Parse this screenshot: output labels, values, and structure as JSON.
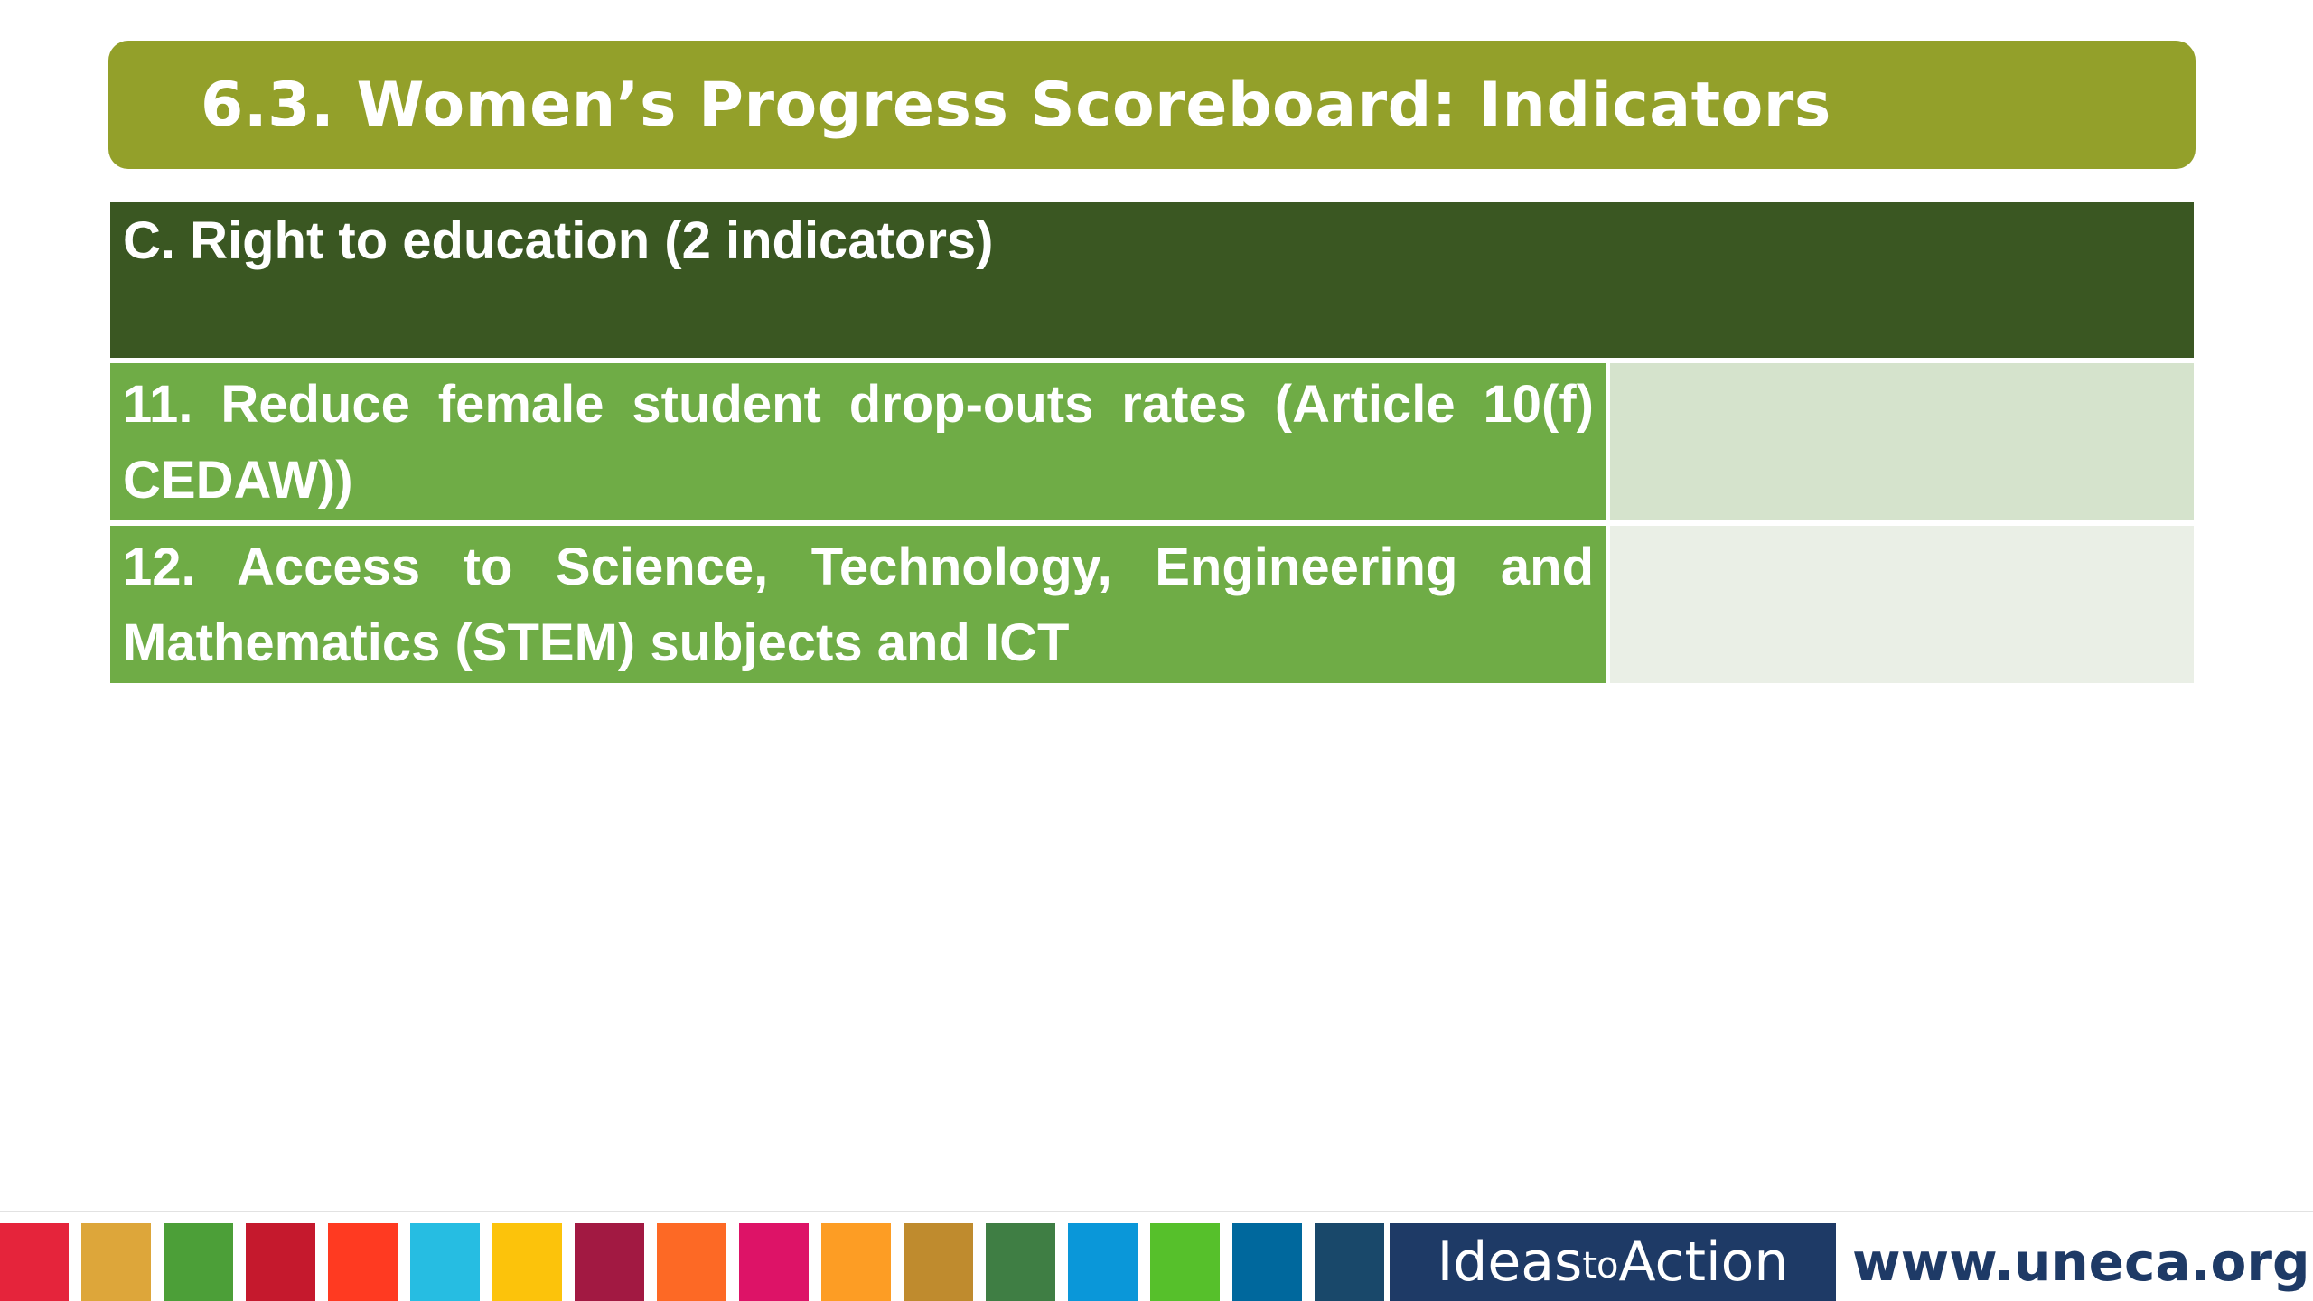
{
  "slide": {
    "title": "6.3. Women’s Progress Scoreboard: Indicators"
  },
  "table": {
    "section_header": "C. Right to education (2 indicators)",
    "rows": [
      {
        "label": "11. Reduce female student drop-outs rates (Article 10(f) CEDAW))",
        "value": ""
      },
      {
        "label": "12. Access to Science, Technology, Engineering and Mathematics (STEM) subjects and ICT",
        "value": ""
      }
    ]
  },
  "footer": {
    "sdg_colors": [
      "#e5243b",
      "#dda63a",
      "#4c9f38",
      "#c5192d",
      "#ff3a21",
      "#26bde2",
      "#fcc30b",
      "#a21942",
      "#fd6925",
      "#dd1367",
      "#fd9d24",
      "#bf8b2e",
      "#3f7e44",
      "#0a97d9",
      "#56c02b",
      "#00689d",
      "#19486a"
    ],
    "brand_ideas": "Ideas",
    "brand_to": "to",
    "brand_action": "Action",
    "website": "www.uneca.org"
  },
  "colors": {
    "title_banner": "#93a02a",
    "section_header": "#3a5722",
    "indicator_cell": "#6fac46",
    "value_cell_1": "#d5e3cc",
    "value_cell_2": "#eaefe6",
    "brand_navy": "#1e3a66"
  }
}
